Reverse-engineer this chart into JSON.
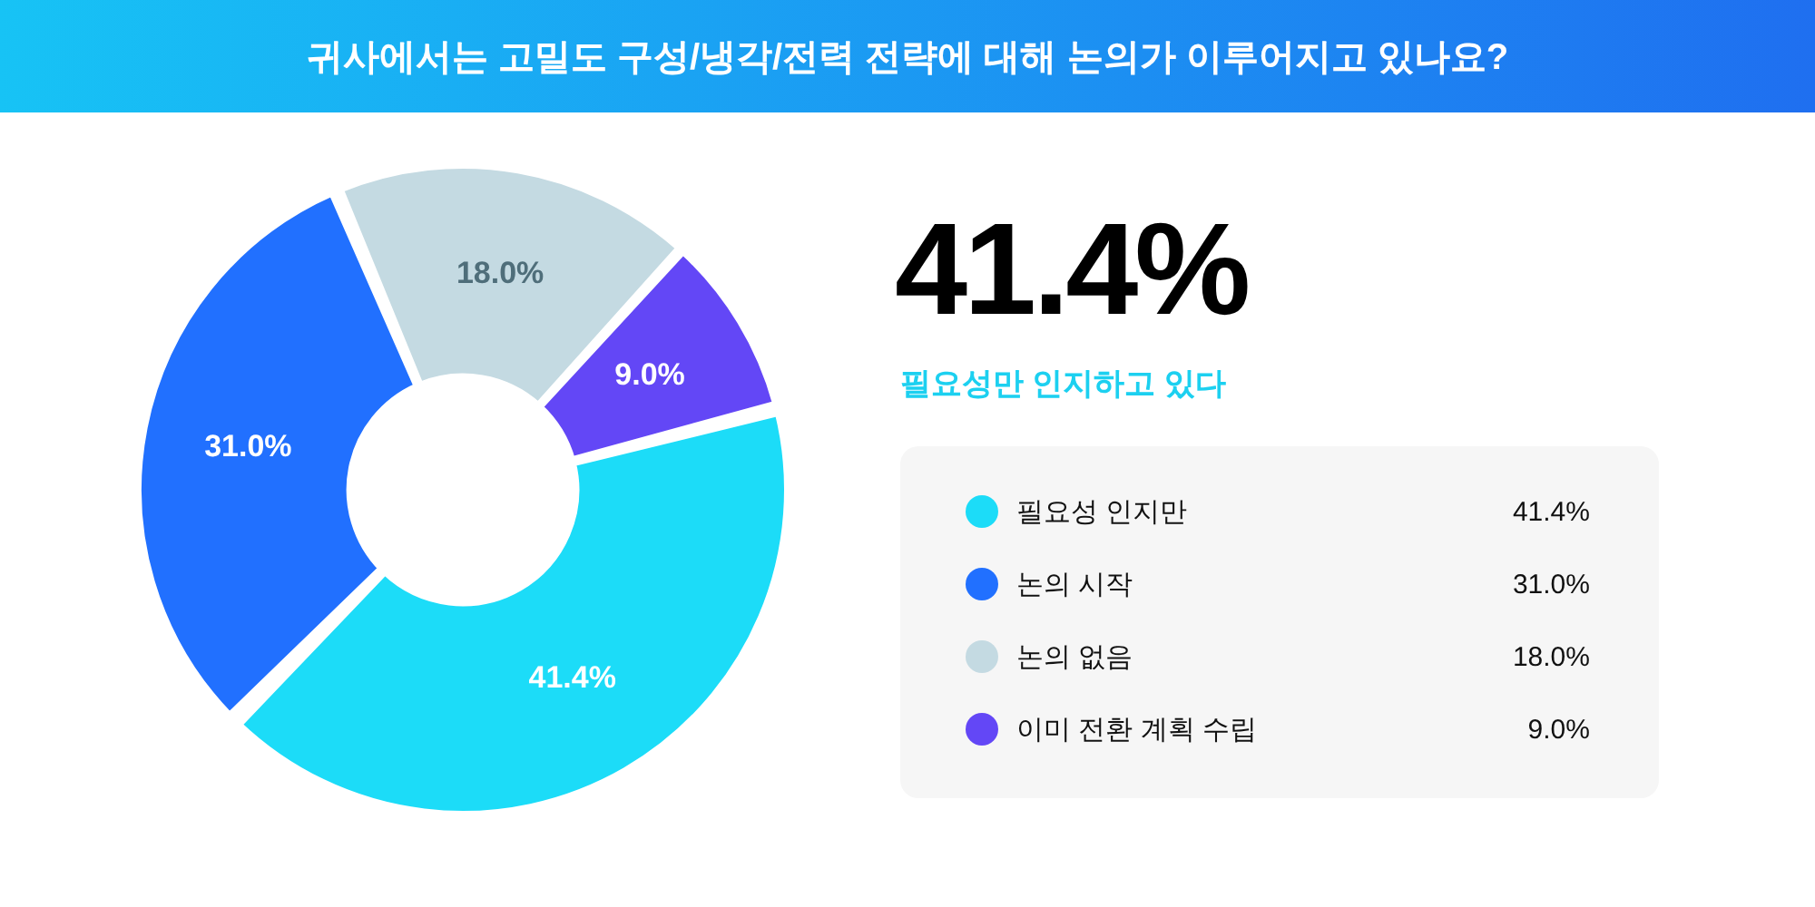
{
  "chart_data": {
    "type": "donut",
    "title": "귀사에서는 고밀도 구성/냉각/전력 전략에 대해 논의가 이루어지고 있나요?",
    "categories": [
      "필요성 인지만",
      "논의 시작",
      "논의 없음",
      "이미 전환 계획 수립"
    ],
    "values": [
      41.4,
      31.0,
      18.0,
      9.0
    ],
    "colors": [
      "#1cdcf8",
      "#2170ff",
      "#c4dae2",
      "#6347f6"
    ],
    "value_labels": [
      "41.4%",
      "31.0%",
      "18.0%",
      "9.0%"
    ],
    "legend": "right",
    "annotations": [
      "41.4%",
      "필요성만 인지하고 있다"
    ]
  }
}
